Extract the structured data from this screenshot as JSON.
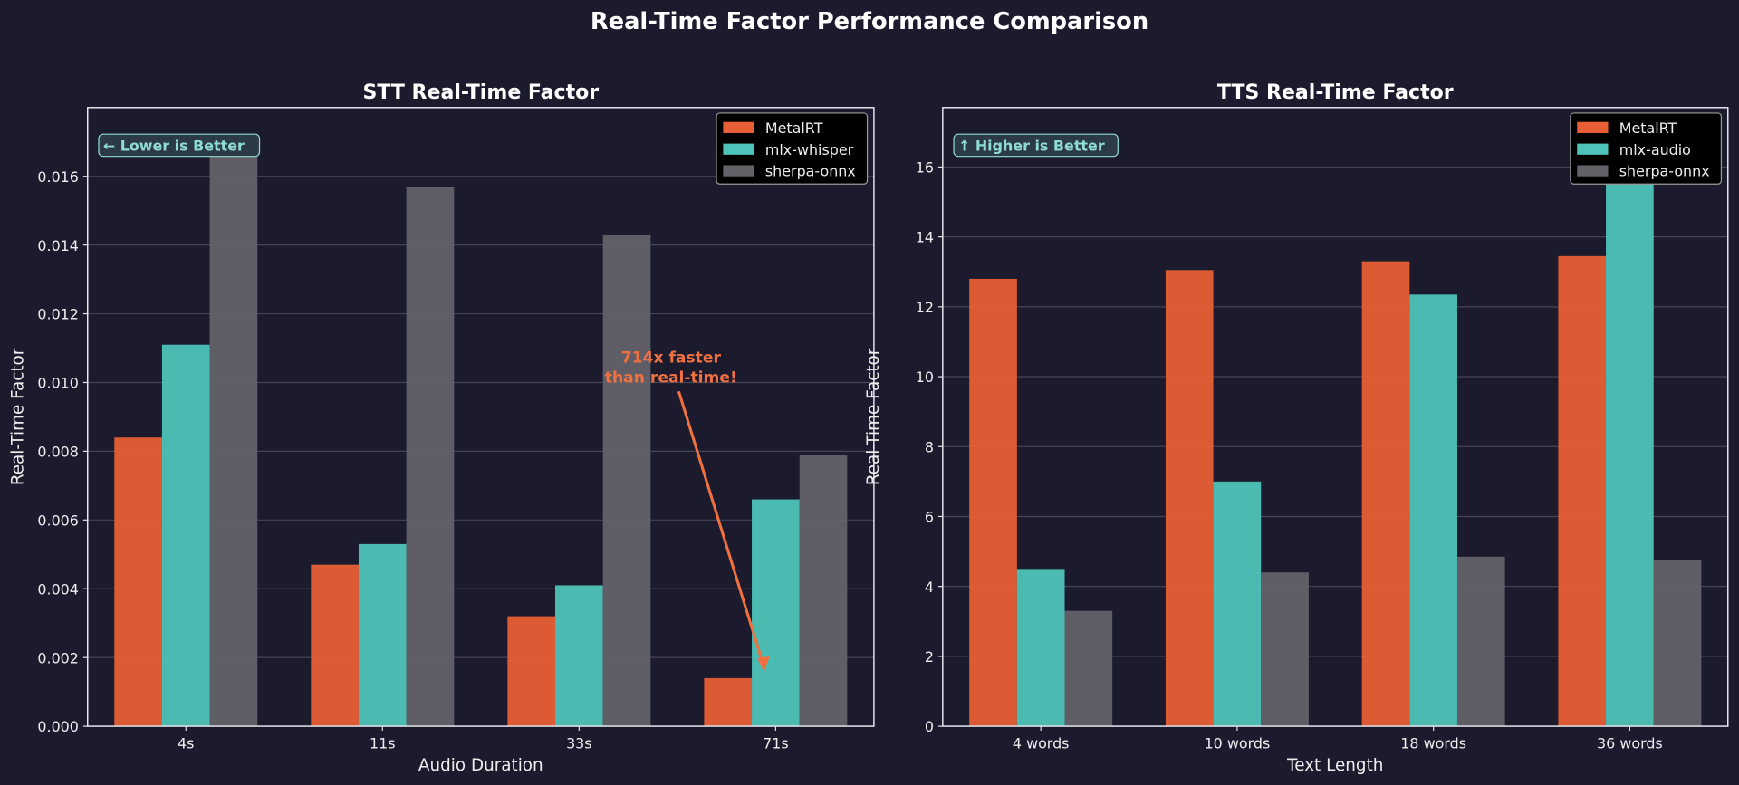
{
  "title": "Real-Time Factor Performance Comparison",
  "colors": {
    "background": "#1c1b2e",
    "MetalRT": "#e85f35",
    "mlx": "#4ec4b8",
    "sherpa-onnx": "#636269",
    "badge": "#8fdcd2",
    "annotation": "#f07040"
  },
  "chart_data": [
    {
      "type": "bar",
      "title": "STT Real-Time Factor",
      "xlabel": "Audio Duration",
      "ylabel": "Real-Time Factor",
      "categories": [
        "4s",
        "11s",
        "33s",
        "71s"
      ],
      "series": [
        {
          "name": "MetalRT",
          "values": [
            0.0084,
            0.0047,
            0.0032,
            0.0014
          ]
        },
        {
          "name": "mlx-whisper",
          "values": [
            0.0111,
            0.0053,
            0.0041,
            0.0066
          ]
        },
        {
          "name": "sherpa-onnx",
          "values": [
            0.0171,
            0.0157,
            0.0143,
            0.0079
          ]
        }
      ],
      "ylim": [
        0,
        0.018
      ],
      "yticks": [
        "0.000",
        "0.002",
        "0.004",
        "0.006",
        "0.008",
        "0.010",
        "0.012",
        "0.014",
        "0.016"
      ],
      "grid": true,
      "legend": "top-right",
      "badge": "← Lower is Better",
      "annotation": {
        "lines": [
          "714x faster",
          "than real-time!"
        ],
        "points_to": "71s MetalRT"
      }
    },
    {
      "type": "bar",
      "title": "TTS Real-Time Factor",
      "xlabel": "Text Length",
      "ylabel": "Real-Time Factor",
      "categories": [
        "4 words",
        "10 words",
        "18 words",
        "36 words"
      ],
      "series": [
        {
          "name": "MetalRT",
          "values": [
            12.8,
            13.05,
            13.3,
            13.45
          ]
        },
        {
          "name": "mlx-audio",
          "values": [
            4.5,
            7.0,
            12.35,
            16.9
          ]
        },
        {
          "name": "sherpa-onnx",
          "values": [
            3.3,
            4.4,
            4.85,
            4.75
          ]
        }
      ],
      "ylim": [
        0,
        17.7
      ],
      "yticks": [
        "0",
        "2",
        "4",
        "6",
        "8",
        "10",
        "12",
        "14",
        "16"
      ],
      "grid": true,
      "legend": "top-right",
      "badge": "↑ Higher is Better"
    }
  ]
}
